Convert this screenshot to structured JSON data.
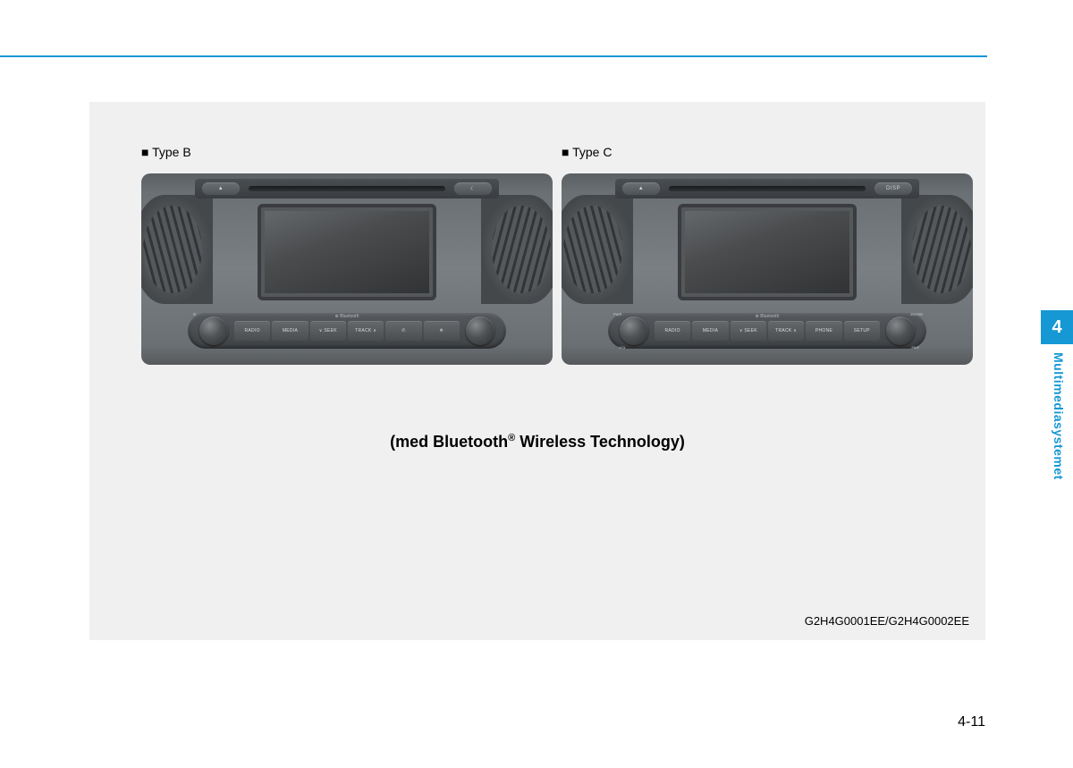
{
  "colors": {
    "accent": "#1698d4",
    "page_bg": "#ffffff",
    "panel_bg": "#f0f0f0",
    "text": "#000000"
  },
  "labels": {
    "type_b": "■ Type B",
    "type_c": "■ Type C"
  },
  "unit_b": {
    "top_left_btn": "▲",
    "top_right_btn": "☾",
    "bluetooth_label": "⊕ Bluetooth",
    "left_knob_top": "⏻",
    "buttons": [
      "RADIO",
      "MEDIA",
      "∨  SEEK",
      "TRACK  ∧",
      "✆",
      "✲"
    ]
  },
  "unit_c": {
    "top_left_btn": "▲",
    "top_right_btn": "DISP",
    "bluetooth_label": "⊕ Bluetooth",
    "left_knob_top": "PWR",
    "left_knob_bottom": "VOL",
    "right_knob_top": "ENTER",
    "right_knob_top2": "TUNE",
    "right_knob_bottom": "FILE",
    "buttons": [
      "RADIO",
      "MEDIA",
      "∨  SEEK",
      "TRACK  ∧",
      "PHONE",
      "SETUP"
    ]
  },
  "caption_pre": "(med Bluetooth",
  "caption_sup": "®",
  "caption_post": " Wireless Technology)",
  "figure_codes": "G2H4G0001EE/G2H4G0002EE",
  "chapter_number": "4",
  "chapter_title": "Multimediasystemet",
  "page_number": "4-11"
}
